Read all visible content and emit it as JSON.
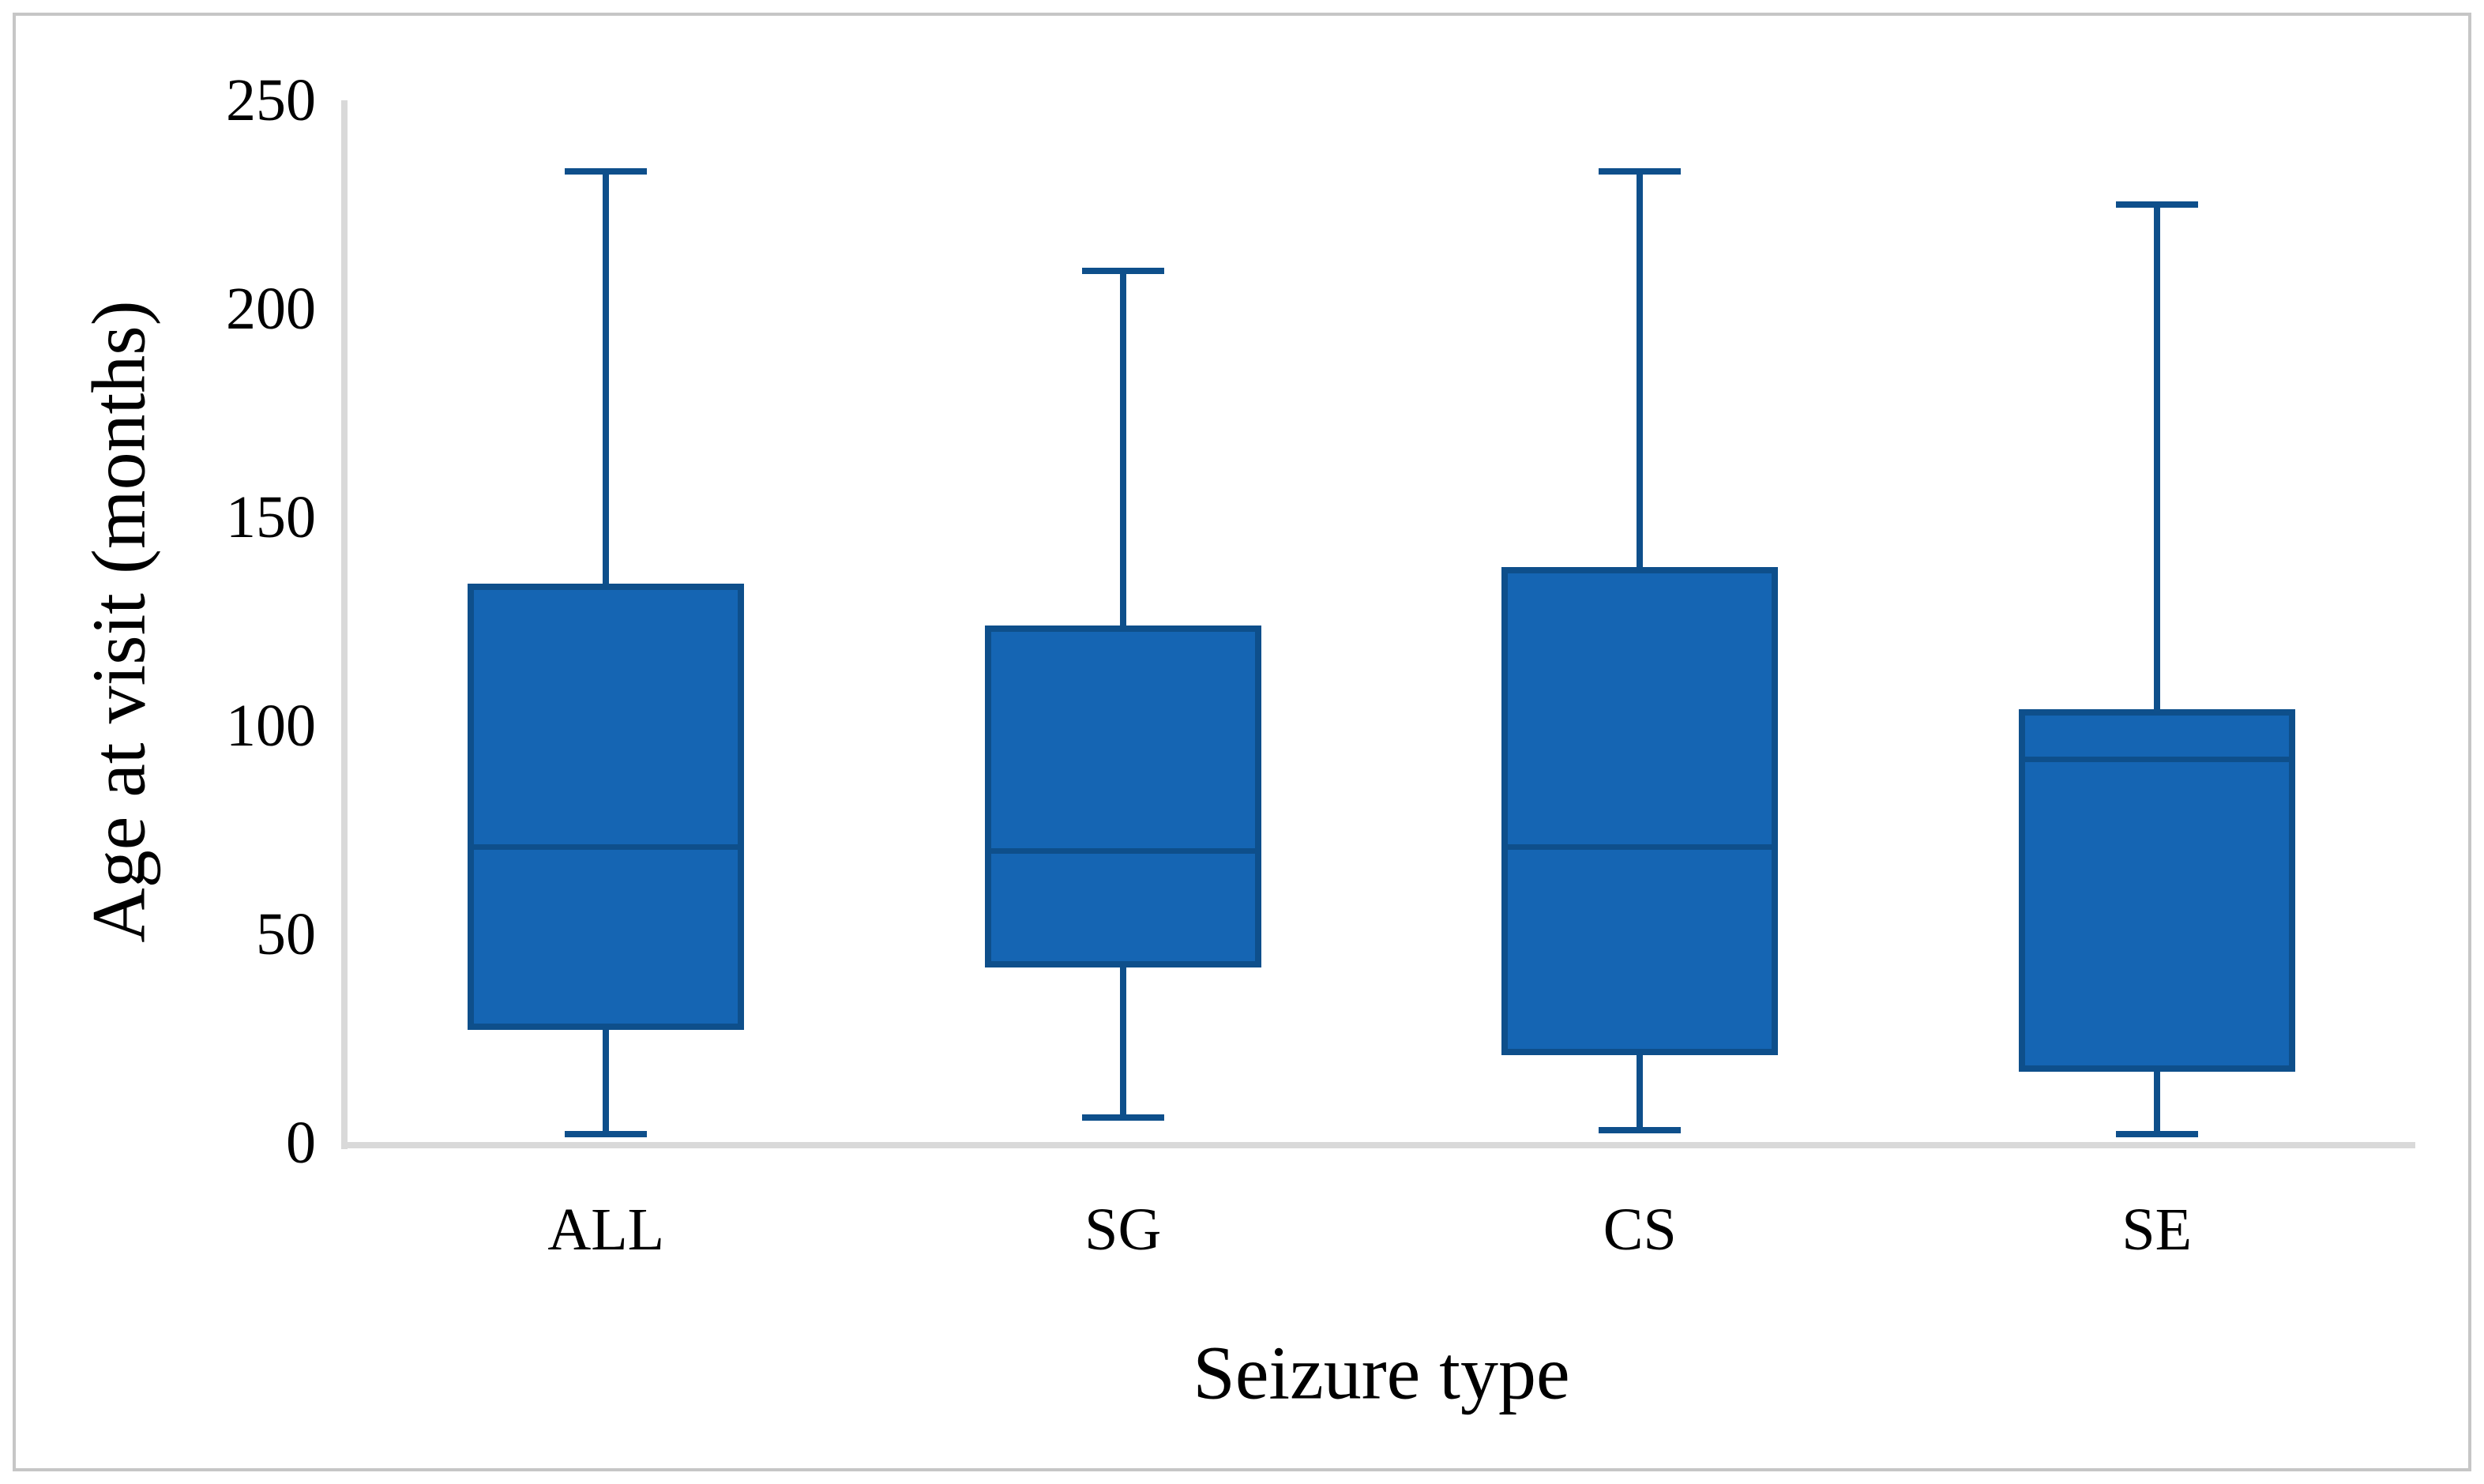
{
  "chart_data": {
    "type": "boxplot",
    "title": "",
    "xlabel": "Seizure type",
    "ylabel": "Age at visit (months)",
    "categories": [
      "ALL",
      "SG",
      "CS",
      "SE"
    ],
    "ylim": [
      0,
      250
    ],
    "yticks": [
      0,
      50,
      100,
      150,
      200,
      250
    ],
    "grid": "off",
    "legend": "none",
    "series": [
      {
        "name": "ALL",
        "min": 2,
        "q1": 27,
        "median": 71,
        "q3": 134,
        "max": 233
      },
      {
        "name": "SG",
        "min": 6,
        "q1": 42,
        "median": 70,
        "q3": 124,
        "max": 209
      },
      {
        "name": "CS",
        "min": 3,
        "q1": 21,
        "median": 71,
        "q3": 138,
        "max": 233
      },
      {
        "name": "SE",
        "min": 2,
        "q1": 17,
        "median": 92,
        "q3": 104,
        "max": 225
      }
    ],
    "colors": {
      "box_fill": "#1565b3",
      "box_border": "#0e4f8b",
      "whisker": "#0e4f8b",
      "median": "#0e4f8b",
      "axis_line": "#d9d9d9",
      "text": "#000000",
      "figure_border": "#c6c6c6"
    }
  }
}
